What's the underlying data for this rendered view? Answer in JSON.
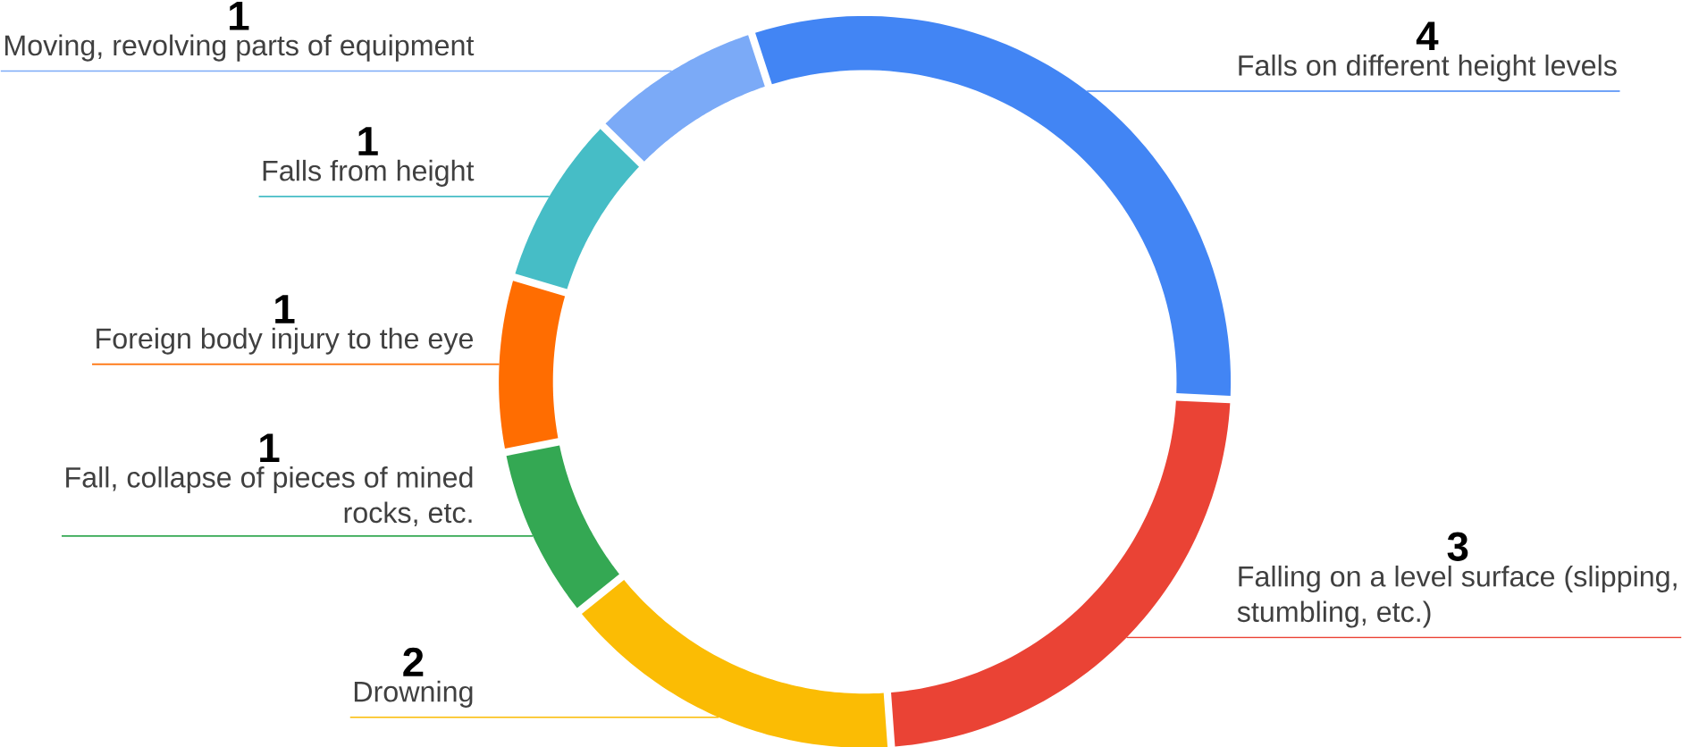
{
  "chart_data": {
    "type": "donut",
    "categories": [
      "Falls on different height levels",
      "Falling on a level surface (slipping, stumbling, etc.)",
      "Drowning",
      "Fall, collapse of pieces of mined rocks, etc.",
      "Foreign body injury to the eye",
      "Falls from height",
      "Moving, revolving parts of equipment"
    ],
    "values": [
      4,
      3,
      2,
      1,
      1,
      1,
      1
    ],
    "value_labels": [
      "4",
      "3",
      "2",
      "1",
      "1",
      "1",
      "1"
    ],
    "colors": [
      "#4285f4",
      "#ea4335",
      "#fbbc04",
      "#34a853",
      "#ff6d01",
      "#46bdc6",
      "#7baaf7"
    ]
  }
}
